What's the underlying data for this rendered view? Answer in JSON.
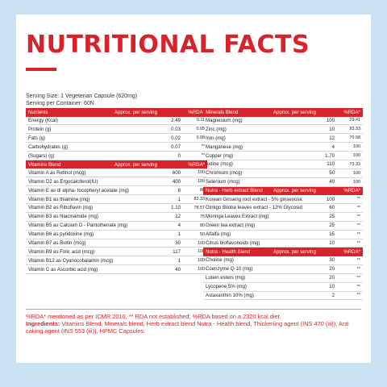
{
  "title": "NUTRITIONAL FACTS",
  "serving": {
    "size": "Serving Size: 1 Vegeterian Capsule (620mg)",
    "per_container": "Serving per Container: 60N"
  },
  "col_headers": {
    "qty": "Approx. per serving",
    "rda": "%RDA*"
  },
  "left_column": [
    {
      "section": "Nutrients",
      "rows": [
        {
          "name": "Energy (Kcal)",
          "qty": "2.49",
          "rda": "0.11"
        },
        {
          "name": "Protein (g)",
          "qty": "0.03",
          "rda": "0.05"
        },
        {
          "name": "Fats (g)",
          "qty": "0.02",
          "rda": "0.08"
        },
        {
          "name": "Carbohydrates (g)",
          "qty": "0.07",
          "rda": "**"
        },
        {
          "name": "(Sugars) (g)",
          "qty": "0",
          "rda": "**"
        }
      ]
    },
    {
      "section": "Vitamins Blend",
      "rows": [
        {
          "name": "Vitamin A as Retinol (mcg)",
          "qty": "600",
          "rda": "100"
        },
        {
          "name": "Vitamin D2 as Ergocalciferol(IU)",
          "qty": "400",
          "rda": "100"
        },
        {
          "name": "Vitamin E as dl alpha- tocopheryl acetate (mg)",
          "qty": "8",
          "rda": "80"
        },
        {
          "name": "Vitamin B1 as thiamine (mg)",
          "qty": "1",
          "rda": "83.33"
        },
        {
          "name": "Vitamin B2 as Riboflavin (mg)",
          "qty": "1.10",
          "rda": "78.57"
        },
        {
          "name": "Vitamin B3 as Niacinamide (mg)",
          "qty": "12",
          "rda": "75"
        },
        {
          "name": "Vitamin B5 as Calcium D - Pantothenate (mg)",
          "qty": "4",
          "rda": "80"
        },
        {
          "name": "Vitamin B6 as pyridoxine (mg)",
          "qty": "1",
          "rda": "50"
        },
        {
          "name": "Vitamin B7 as Biotin (mcg)",
          "qty": "30",
          "rda": "100"
        },
        {
          "name": "Vitamin B9 as Folic acid (mcg)",
          "qty": "117",
          "rda": "100"
        },
        {
          "name": "Vitamin B12 as Cyanocobalamin (mcg)",
          "qty": "1",
          "rda": "100"
        },
        {
          "name": "Vitamin C as Ascorbic acid (mg)",
          "qty": "40",
          "rda": "100"
        }
      ]
    }
  ],
  "right_column": [
    {
      "section": "Minerals Blend",
      "rows": [
        {
          "name": "Magnesium (mg)",
          "qty": "100",
          "rda": "29.41"
        },
        {
          "name": "Zinc (mg)",
          "qty": "10",
          "rda": "83.33"
        },
        {
          "name": "Iron (mg)",
          "qty": "12",
          "rda": "70.58"
        },
        {
          "name": "Manganese (mg)",
          "qty": "4",
          "rda": "100"
        },
        {
          "name": "Copper (mg)",
          "qty": "1.70",
          "rda": "100"
        },
        {
          "name": "Iodine (mcg)",
          "qty": "110",
          "rda": "73.33"
        },
        {
          "name": "Chromium (mcg)",
          "qty": "50",
          "rda": "100"
        },
        {
          "name": "Selenium (mcg)",
          "qty": "40",
          "rda": "100"
        }
      ]
    },
    {
      "section": "Nutra - Herb extract Blend",
      "rows": [
        {
          "name": "Korean Ginseng root extract - 5% ginsenoside (mg)",
          "qty": "100",
          "rda": "**"
        },
        {
          "name": "Ginkgo Biloba leaves extract - 12% Glycosides (mg)",
          "qty": "60",
          "rda": "**"
        },
        {
          "name": "Moringa Leaves Extract (mg)",
          "qty": "25",
          "rda": "**"
        },
        {
          "name": "Green tea extract (mg)",
          "qty": "25",
          "rda": "**"
        },
        {
          "name": "Alfalfa (mg)",
          "qty": "15",
          "rda": "**"
        },
        {
          "name": "Citrus bioflavonoids (mg)",
          "qty": "10",
          "rda": "**"
        }
      ]
    },
    {
      "section": "Nutra - Health Blend",
      "rows": [
        {
          "name": "Choline (mg)",
          "qty": "30",
          "rda": "**"
        },
        {
          "name": "Coenzyme Q-10 (mg)",
          "qty": "20",
          "rda": "**"
        },
        {
          "name": "Lutein esters (mg)",
          "qty": "20",
          "rda": "**"
        },
        {
          "name": "Lycopene 5% (mg)",
          "qty": "10",
          "rda": "**"
        },
        {
          "name": "Astaxanthin 10% (mg)",
          "qty": "2",
          "rda": "**"
        }
      ]
    }
  ],
  "footnote": "%RDA* mentioned as per ICMR 2010, ** RDA not established; %RDA based on a 2320 kcal diet.",
  "ingredients_label": "Ingredients:",
  "ingredients_text": " Vitamins Blend, Minerals blend, Herb extract blend Nutra - Health blend, Thickening agent (INS 470 (iii)), Anti caking agent (INS 553 (iii)), HPMC Capsules.",
  "colors": {
    "accent": "#d8232a",
    "background": "#c9e3f4"
  }
}
